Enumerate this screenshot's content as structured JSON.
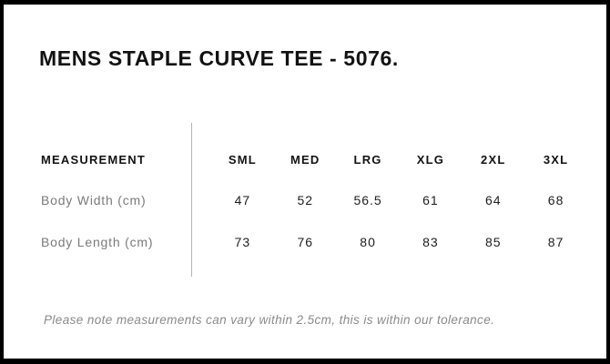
{
  "page": {
    "title": "MENS STAPLE CURVE TEE - 5076.",
    "note": "Please note measurements can vary within 2.5cm, this is within our tolerance."
  },
  "size_chart": {
    "measurement_header": "MEASUREMENT",
    "sizes": [
      "SML",
      "MED",
      "LRG",
      "XLG",
      "2XL",
      "3XL"
    ],
    "rows": [
      {
        "label": "Body Width (cm)",
        "values": [
          "47",
          "52",
          "56.5",
          "61",
          "64",
          "68"
        ]
      },
      {
        "label": "Body Length (cm)",
        "values": [
          "73",
          "76",
          "80",
          "83",
          "85",
          "87"
        ]
      }
    ]
  },
  "colors": {
    "border": "#000000",
    "title_text": "#121212",
    "header_text": "#121212",
    "label_text": "#7b7b7b",
    "value_text": "#1e1e1e",
    "divider": "#b4b4b4",
    "note_text": "#8a8a8a",
    "background": "#ffffff"
  }
}
